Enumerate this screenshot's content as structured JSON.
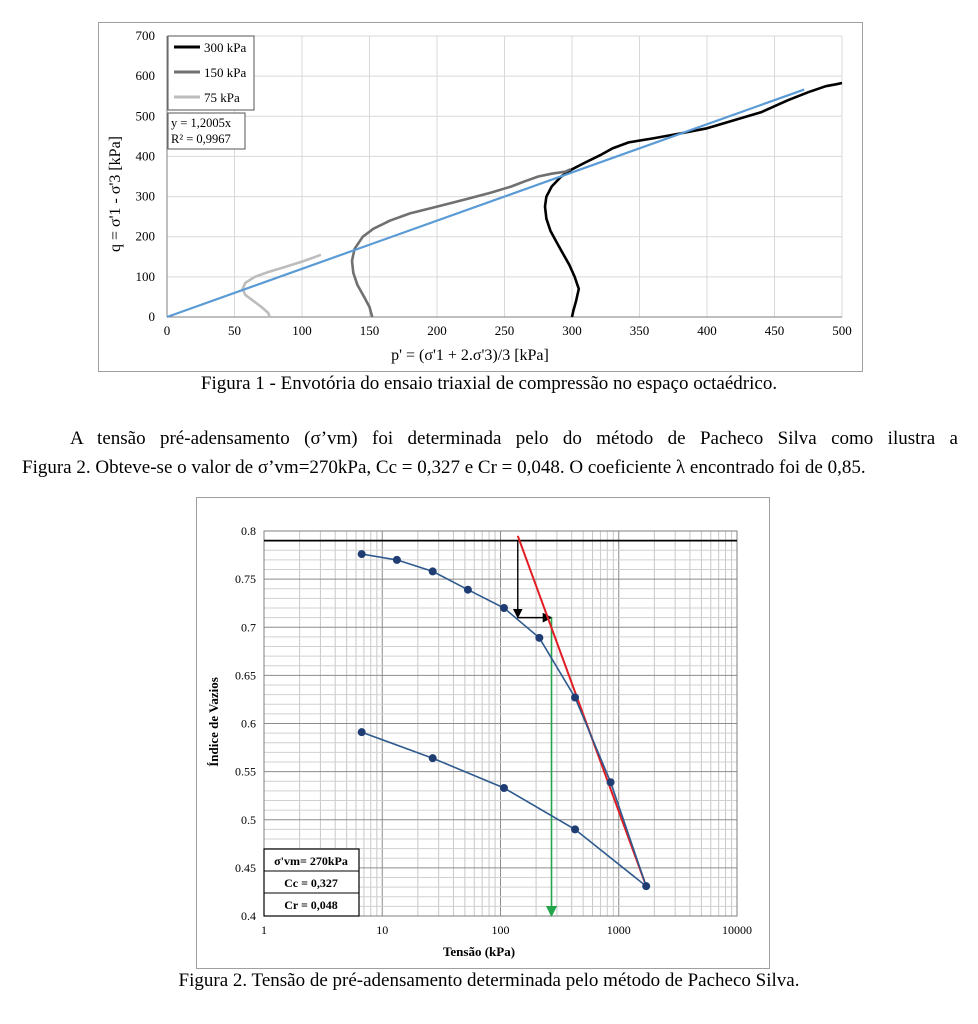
{
  "figure1": {
    "caption": "Figura 1 - Envotória do ensaio triaxial de compressão no espaço octaédrico.",
    "chart_data": {
      "type": "line",
      "xlabel": "p' = (σ'1 + 2.σ'3)/3 [kPa]",
      "ylabel": "q = σ'1 - σ'3 [kPa]",
      "xlim": [
        0,
        500
      ],
      "ylim": [
        0,
        700
      ],
      "x_ticks": [
        "0",
        "50",
        "100",
        "150",
        "200",
        "250",
        "300",
        "350",
        "400",
        "450",
        "500"
      ],
      "y_ticks": [
        "0",
        "100",
        "200",
        "300",
        "400",
        "500",
        "600",
        "700"
      ],
      "grid": true,
      "legend_position": "top-left",
      "series": [
        {
          "name": "300 kPa",
          "color": "#000000",
          "points": [
            [
              300,
              0
            ],
            [
              301,
              15
            ],
            [
              303,
              40
            ],
            [
              305,
              70
            ],
            [
              302,
              100
            ],
            [
              298,
              130
            ],
            [
              293,
              160
            ],
            [
              288,
              190
            ],
            [
              284,
              215
            ],
            [
              281,
              245
            ],
            [
              280,
              275
            ],
            [
              281,
              300
            ],
            [
              285,
              325
            ],
            [
              292,
              350
            ],
            [
              300,
              368
            ],
            [
              310,
              385
            ],
            [
              322,
              405
            ],
            [
              330,
              420
            ],
            [
              342,
              435
            ],
            [
              360,
              445
            ],
            [
              380,
              457
            ],
            [
              400,
              470
            ],
            [
              420,
              490
            ],
            [
              440,
              510
            ],
            [
              460,
              540
            ],
            [
              475,
              560
            ],
            [
              488,
              575
            ],
            [
              496,
              580
            ],
            [
              500,
              583
            ]
          ]
        },
        {
          "name": "150 kPa",
          "color": "#707070",
          "points": [
            [
              152,
              0
            ],
            [
              150,
              25
            ],
            [
              146,
              50
            ],
            [
              141,
              80
            ],
            [
              138,
              110
            ],
            [
              137,
              140
            ],
            [
              139,
              170
            ],
            [
              145,
              200
            ],
            [
              153,
              220
            ],
            [
              165,
              240
            ],
            [
              180,
              258
            ],
            [
              200,
              275
            ],
            [
              220,
              292
            ],
            [
              240,
              310
            ],
            [
              255,
              325
            ],
            [
              265,
              338
            ],
            [
              275,
              350
            ],
            [
              285,
              357
            ],
            [
              295,
              362
            ],
            [
              299,
              368
            ]
          ]
        },
        {
          "name": "75 kPa",
          "color": "#bdbdbd",
          "points": [
            [
              76,
              0
            ],
            [
              75,
              10
            ],
            [
              70,
              25
            ],
            [
              64,
              40
            ],
            [
              58,
              55
            ],
            [
              56,
              70
            ],
            [
              58,
              85
            ],
            [
              65,
              100
            ],
            [
              75,
              112
            ],
            [
              88,
              125
            ],
            [
              100,
              138
            ],
            [
              110,
              150
            ],
            [
              114,
              155
            ]
          ]
        }
      ],
      "trendline": {
        "equation": "y = 1,2005x",
        "r2": "R² = 0,9967",
        "slope": 1.2005,
        "x_range": [
          0,
          472
        ],
        "color": "#5b9bd5"
      }
    }
  },
  "paragraph": {
    "line1": "A tensão pré-adensamento (σ’vm) foi determinada pelo do método de Pacheco Silva como ilustra a",
    "line2": "Figura 2. Obteve-se o valor de σ’vm=270kPa, Cc = 0,327 e Cr = 0,048. O coeficiente λ encontrado foi de 0,85."
  },
  "figure2": {
    "caption": "Figura 2. Tensão de pré-adensamento determinada pelo método de Pacheco Silva.",
    "chart_data": {
      "type": "scatter",
      "xlabel": "Tensão (kPa)",
      "ylabel": "Índice de Vazios",
      "x_scale": "log",
      "xlim": [
        1,
        10000
      ],
      "ylim": [
        0.4,
        0.8
      ],
      "x_ticks": [
        "1",
        "10",
        "100",
        "1000",
        "10000"
      ],
      "y_ticks": [
        "0.4",
        "0.45",
        "0.5",
        "0.55",
        "0.6",
        "0.65",
        "0.7",
        "0.75",
        "0.8"
      ],
      "grid": true,
      "series": [
        {
          "name": "",
          "color": "#2e5a8e",
          "points": [
            [
              6.7,
              0.776
            ],
            [
              13.3,
              0.77
            ],
            [
              26.7,
              0.758
            ],
            [
              53,
              0.739
            ],
            [
              107,
              0.72
            ],
            [
              213,
              0.689
            ],
            [
              427,
              0.627
            ],
            [
              853,
              0.539
            ],
            [
              1706,
              0.431
            ],
            [
              427,
              0.49
            ],
            [
              107,
              0.533
            ],
            [
              26.7,
              0.564
            ],
            [
              6.7,
              0.591
            ]
          ]
        }
      ],
      "annotations": {
        "horizontal_line": {
          "y": 0.79,
          "color": "#000000"
        },
        "red_line": {
          "from": [
            140,
            0.795
          ],
          "to": [
            1706,
            0.431
          ],
          "color": "#e11d24"
        },
        "black_vertical_arrow": {
          "from": [
            140,
            0.79
          ],
          "to": [
            140,
            0.71
          ]
        },
        "black_horizontal_arrow": {
          "from": [
            140,
            0.71
          ],
          "to": [
            270,
            0.71
          ]
        },
        "green_arrow": {
          "from": [
            270,
            0.71
          ],
          "to": [
            270,
            0.4
          ],
          "color": "#22a54b"
        }
      },
      "table": {
        "row1": "σ'vm= 270kPa",
        "row2": "Cc = 0,327",
        "row3": "Cr = 0,048"
      }
    }
  }
}
